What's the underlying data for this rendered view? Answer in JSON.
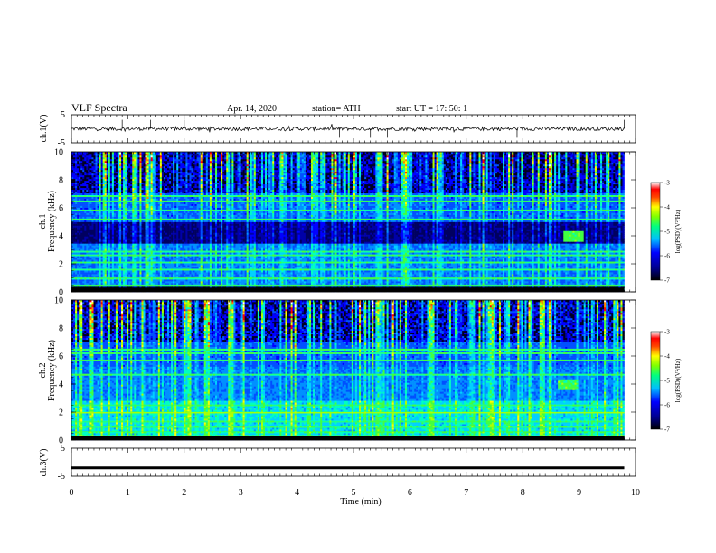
{
  "header": {
    "title": "VLF  Spectra",
    "date": "Apr. 14, 2020",
    "station": "station= ATH",
    "start": "start  UT  =    17: 50: 1"
  },
  "colors": {
    "spectrogram_scale": [
      "#000033",
      "#00008b",
      "#0000ff",
      "#1e90ff",
      "#00ffff",
      "#00ff00",
      "#ffff00",
      "#ff8c00",
      "#ff0000",
      "#ffffff"
    ]
  },
  "chart_data": [
    {
      "type": "line",
      "ylabel": "ch.1(V)",
      "ylim": [
        -5,
        5
      ],
      "y_ticks": [
        "5",
        "-5"
      ],
      "xlim": [
        0,
        10
      ],
      "series": [
        {
          "description_none": true,
          "baseline": 0,
          "noise_amplitude": 0.3
        }
      ]
    },
    {
      "type": "heatmap",
      "ylabel": "ch.1\nFrequency (kHz)",
      "ylim": [
        0,
        10
      ],
      "y_ticks": [
        "0",
        "2",
        "4",
        "6",
        "8",
        "10"
      ],
      "xlim": [
        0,
        9.8
      ],
      "colorbar": {
        "label": "log(PSD)(V²/Hz)",
        "range": [
          -7,
          -3
        ],
        "ticks": [
          "-3",
          "-4",
          "-5",
          "-6",
          "-7"
        ]
      },
      "features": {
        "dark_band_khz": [
          3.4,
          5.0
        ],
        "enhancement_at_min": 8.9,
        "enhancement_khz": 4.0
      }
    },
    {
      "type": "heatmap",
      "ylabel": "ch.2\nFrequency (kHz)",
      "ylim": [
        0,
        10
      ],
      "y_ticks": [
        "0",
        "2",
        "4",
        "6",
        "8",
        "10"
      ],
      "xlim": [
        0,
        9.8
      ],
      "colorbar": {
        "label": "log(PSD)(V²/Hz)",
        "range": [
          -7,
          -3
        ],
        "ticks": [
          "-3",
          "-4",
          "-5",
          "-6",
          "-7"
        ]
      },
      "features": {
        "bright_line_khz": 1.95,
        "enhancement_at_min": 8.8,
        "enhancement_khz": 4.0
      }
    },
    {
      "type": "line",
      "ylabel": "ch.3(V)",
      "ylim": [
        -5,
        5
      ],
      "y_ticks": [
        "5",
        "-5"
      ],
      "xlim": [
        0,
        10
      ],
      "series": [
        {
          "constant": -2
        }
      ]
    }
  ],
  "x_axis": {
    "label": "Time  (min)",
    "ticks": [
      "0",
      "1",
      "2",
      "3",
      "4",
      "5",
      "6",
      "7",
      "8",
      "9",
      "10"
    ],
    "range": [
      0,
      10
    ]
  }
}
